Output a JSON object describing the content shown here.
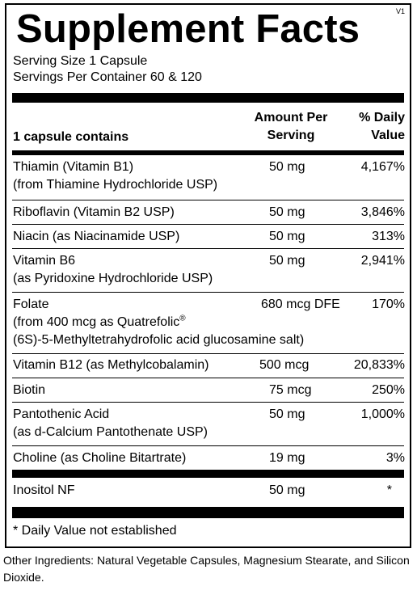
{
  "label": {
    "title": "Supplement Facts",
    "version": "V1",
    "serving_size": "Serving Size 1 Capsule",
    "servings_per_container": "Servings Per Container 60 & 120",
    "header": {
      "contains": "1 capsule contains",
      "amount_line1": "Amount Per",
      "amount_line2": "Serving",
      "dv_line1": "% Daily",
      "dv_line2": "Value"
    },
    "rows": [
      {
        "line1": "Thiamin (Vitamin B1)",
        "line2": "(from Thiamine Hydrochloride USP)",
        "amount": "50 mg",
        "dv": "4,167%"
      },
      {
        "line1": "Riboflavin (Vitamin B2 USP)",
        "amount": "50 mg",
        "dv": "3,846%"
      },
      {
        "line1": "Niacin (as Niacinamide USP)",
        "amount": "50 mg",
        "dv": "313%"
      },
      {
        "line1": "Vitamin B6",
        "line2": "(as Pyridoxine Hydrochloride USP)",
        "amount": "50 mg",
        "dv": "2,941%"
      },
      {
        "line1": "Folate",
        "line2": "(from 400 mcg as Quatrefolic",
        "line2_sup": "®",
        "line3": "(6S)-5-Methyltetrahydrofolic acid glucosamine salt)",
        "amount": "680 mcg DFE",
        "dv": "170%"
      },
      {
        "line1": "Vitamin B12 (as Methylcobalamin)",
        "amount": "500 mcg",
        "dv": "20,833%"
      },
      {
        "line1": "Biotin",
        "amount": "75 mcg",
        "dv": "250%"
      },
      {
        "line1": "Pantothenic Acid",
        "line2": "(as d-Calcium Pantothenate USP)",
        "amount": "50 mg",
        "dv": "1,000%"
      },
      {
        "line1": "Choline (as Choline Bitartrate)",
        "amount": "19 mg",
        "dv": "3%"
      },
      {
        "line1": "Inositol NF",
        "amount": "50 mg",
        "dv": "*"
      }
    ],
    "footnote": "* Daily Value not established"
  },
  "other_ingredients": "Other Ingredients: Natural Vegetable Capsules, Magnesium Stearate, and Silicon Dioxide."
}
